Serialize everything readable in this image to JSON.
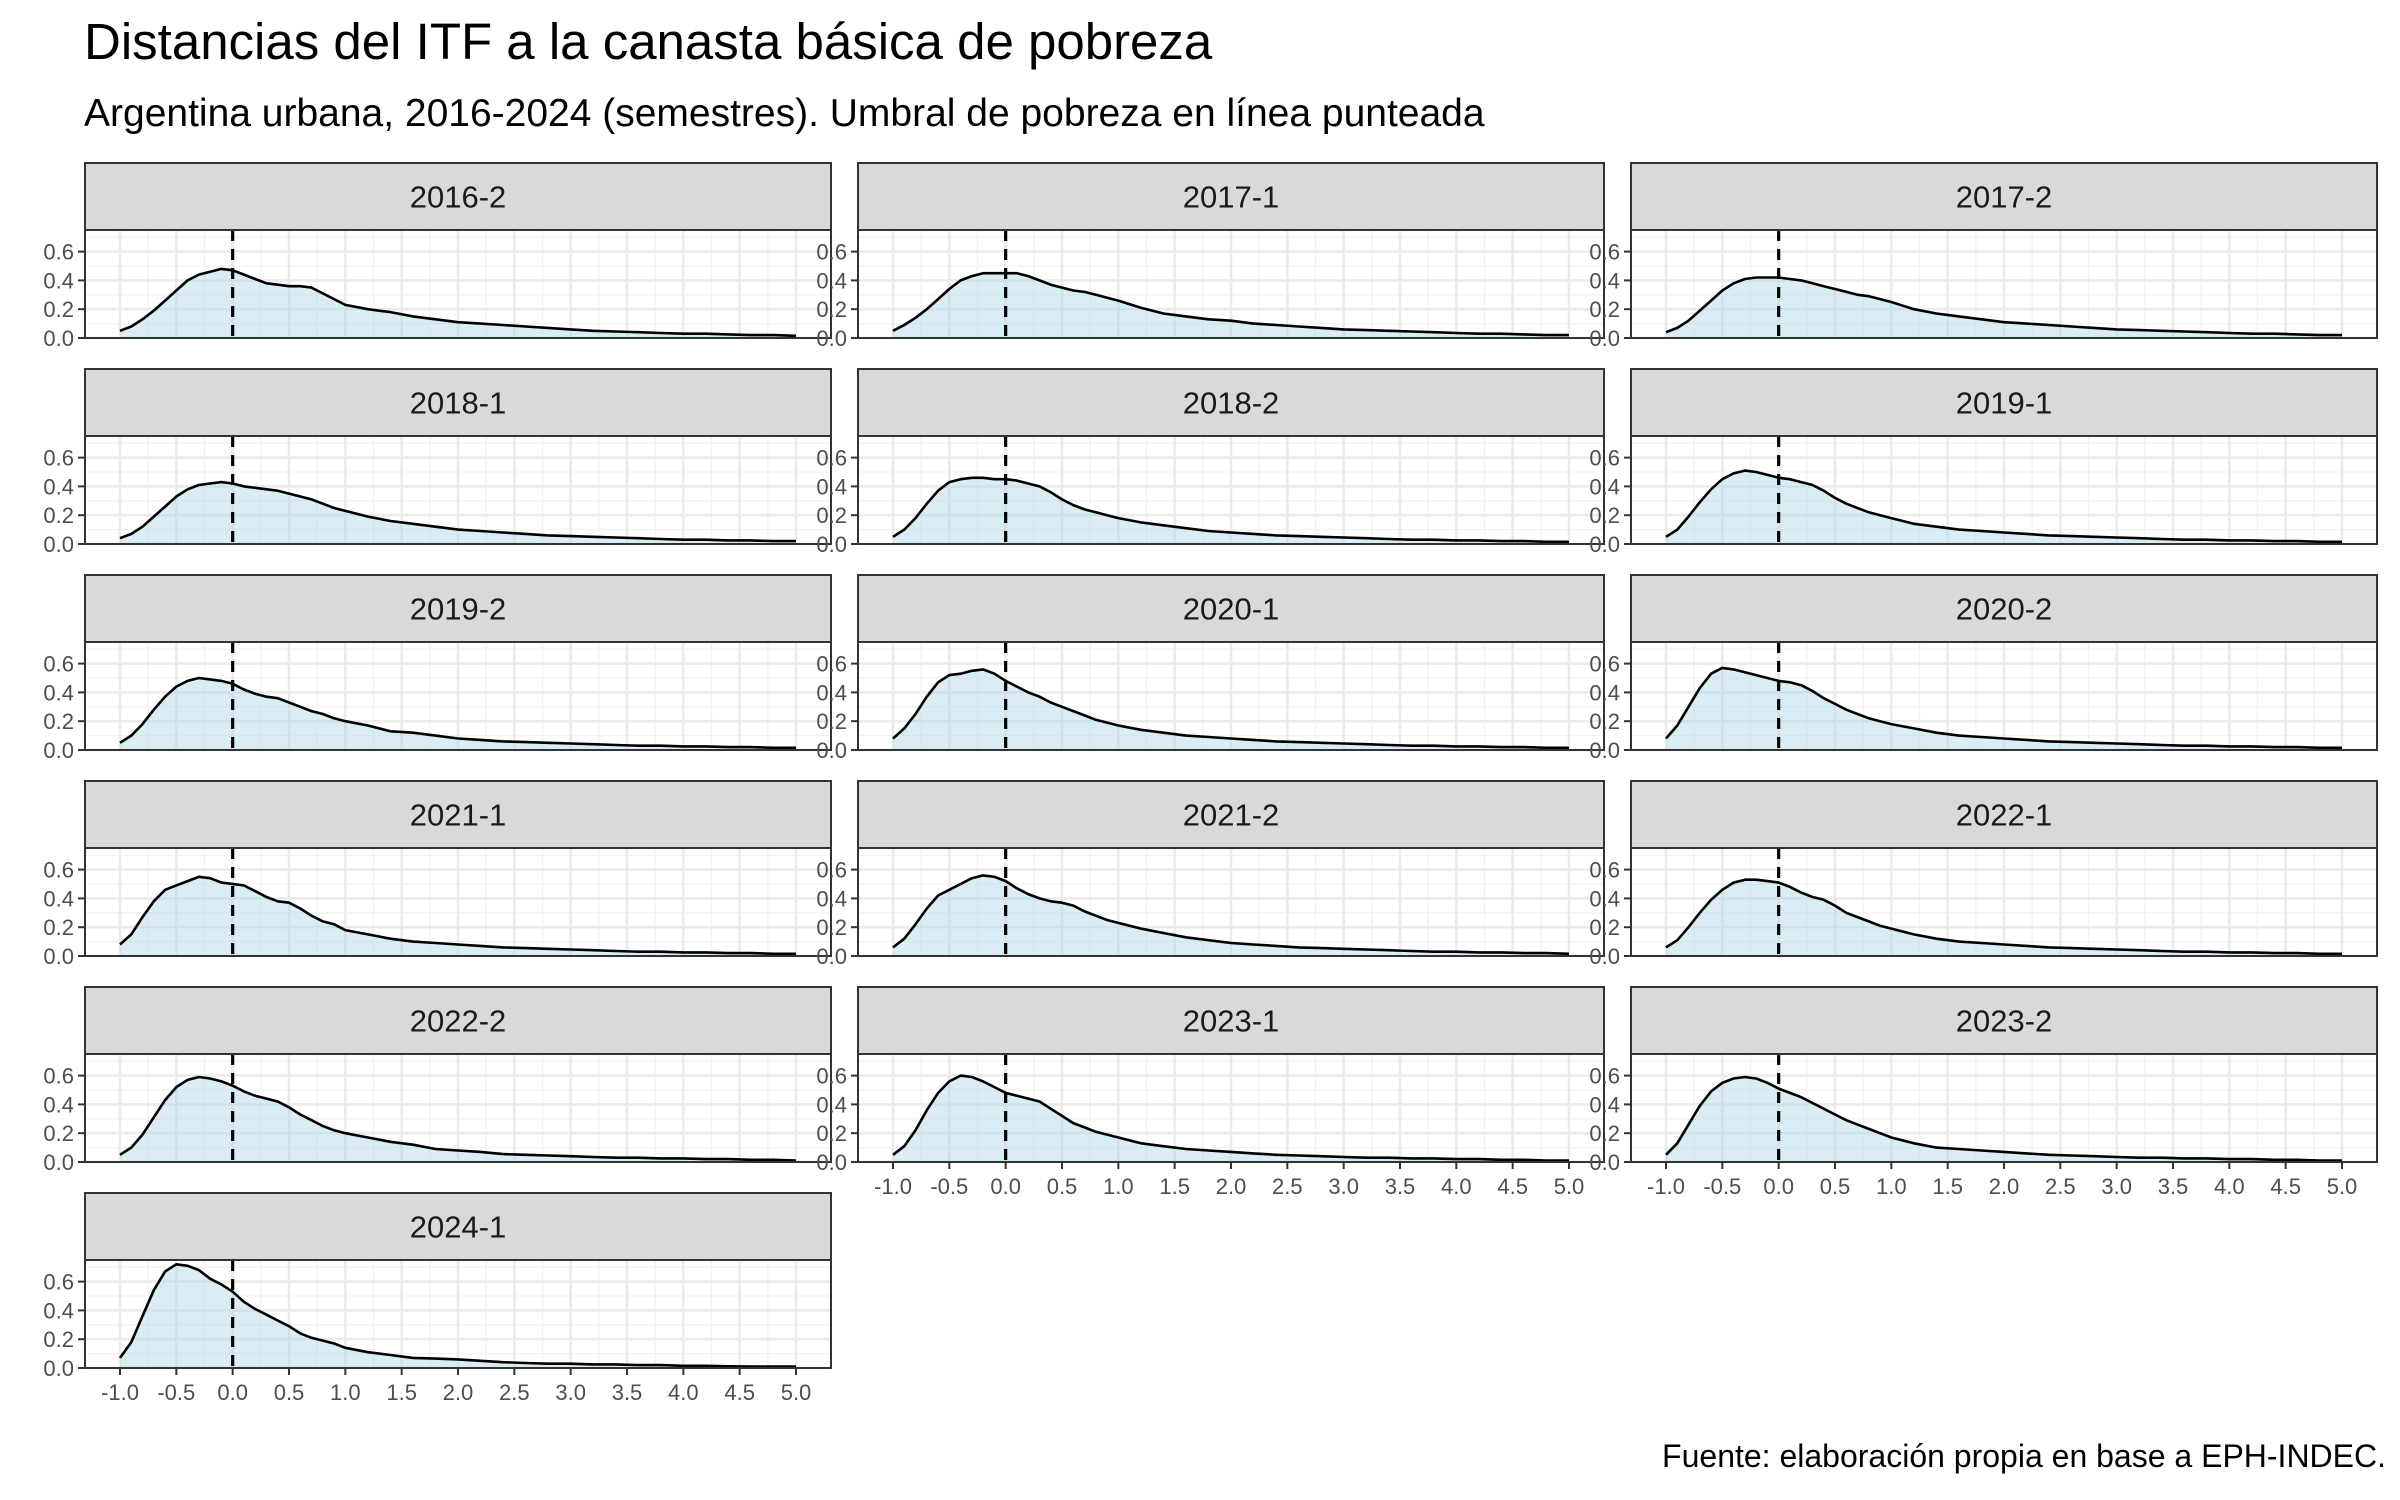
{
  "title": "Distancias del ITF a la canasta básica de pobreza",
  "subtitle": "Argentina urbana, 2016-2024 (semestres). Umbral de pobreza en línea punteada",
  "caption": "Fuente: elaboración propia en base a EPH-INDEC.",
  "chart_data": {
    "type": "area",
    "facet_layout": {
      "columns": 3,
      "rows": 6
    },
    "threshold": {
      "x": 0,
      "style": "dashed"
    },
    "xlim": [
      -1.0,
      5.0
    ],
    "ylim": [
      0,
      0.75
    ],
    "x_ticks": [
      "-1.0",
      "-0.5",
      "0.0",
      "0.5",
      "1.0",
      "1.5",
      "2.0",
      "2.5",
      "3.0",
      "3.5",
      "4.0",
      "4.5",
      "5.0"
    ],
    "y_ticks": [
      "0.0",
      "0.2",
      "0.4",
      "0.6"
    ],
    "x_values": [
      -1.0,
      -0.9,
      -0.8,
      -0.7,
      -0.6,
      -0.5,
      -0.4,
      -0.3,
      -0.2,
      -0.1,
      0.0,
      0.1,
      0.2,
      0.3,
      0.4,
      0.5,
      0.6,
      0.7,
      0.8,
      0.9,
      1.0,
      1.2,
      1.4,
      1.6,
      1.8,
      2.0,
      2.2,
      2.4,
      2.6,
      2.8,
      3.0,
      3.2,
      3.4,
      3.6,
      3.8,
      4.0,
      4.2,
      4.4,
      4.6,
      4.8,
      5.0
    ],
    "series": [
      {
        "name": "2016-2",
        "values": [
          0.05,
          0.08,
          0.13,
          0.19,
          0.26,
          0.33,
          0.4,
          0.44,
          0.46,
          0.48,
          0.47,
          0.44,
          0.41,
          0.38,
          0.37,
          0.36,
          0.36,
          0.35,
          0.31,
          0.27,
          0.23,
          0.2,
          0.18,
          0.15,
          0.13,
          0.11,
          0.1,
          0.09,
          0.08,
          0.07,
          0.06,
          0.05,
          0.045,
          0.04,
          0.035,
          0.03,
          0.03,
          0.025,
          0.02,
          0.02,
          0.015
        ]
      },
      {
        "name": "2017-1",
        "values": [
          0.05,
          0.09,
          0.14,
          0.2,
          0.27,
          0.34,
          0.4,
          0.43,
          0.45,
          0.45,
          0.45,
          0.45,
          0.43,
          0.4,
          0.37,
          0.35,
          0.33,
          0.32,
          0.3,
          0.28,
          0.26,
          0.21,
          0.17,
          0.15,
          0.13,
          0.12,
          0.1,
          0.09,
          0.08,
          0.07,
          0.06,
          0.055,
          0.05,
          0.045,
          0.04,
          0.035,
          0.03,
          0.03,
          0.025,
          0.02,
          0.02
        ]
      },
      {
        "name": "2017-2",
        "values": [
          0.04,
          0.07,
          0.12,
          0.19,
          0.26,
          0.33,
          0.38,
          0.41,
          0.42,
          0.42,
          0.42,
          0.41,
          0.4,
          0.38,
          0.36,
          0.34,
          0.32,
          0.3,
          0.29,
          0.27,
          0.25,
          0.2,
          0.17,
          0.15,
          0.13,
          0.11,
          0.1,
          0.09,
          0.08,
          0.07,
          0.06,
          0.055,
          0.05,
          0.045,
          0.04,
          0.035,
          0.03,
          0.03,
          0.025,
          0.02,
          0.02
        ]
      },
      {
        "name": "2018-1",
        "values": [
          0.04,
          0.07,
          0.12,
          0.19,
          0.26,
          0.33,
          0.38,
          0.41,
          0.42,
          0.43,
          0.42,
          0.4,
          0.39,
          0.38,
          0.37,
          0.35,
          0.33,
          0.31,
          0.28,
          0.25,
          0.23,
          0.19,
          0.16,
          0.14,
          0.12,
          0.1,
          0.09,
          0.08,
          0.07,
          0.06,
          0.055,
          0.05,
          0.045,
          0.04,
          0.035,
          0.03,
          0.03,
          0.025,
          0.025,
          0.02,
          0.02
        ]
      },
      {
        "name": "2018-2",
        "values": [
          0.05,
          0.1,
          0.18,
          0.28,
          0.37,
          0.43,
          0.45,
          0.46,
          0.46,
          0.45,
          0.45,
          0.44,
          0.42,
          0.4,
          0.36,
          0.31,
          0.27,
          0.24,
          0.22,
          0.2,
          0.18,
          0.15,
          0.13,
          0.11,
          0.09,
          0.08,
          0.07,
          0.06,
          0.055,
          0.05,
          0.045,
          0.04,
          0.035,
          0.03,
          0.03,
          0.025,
          0.025,
          0.02,
          0.02,
          0.015,
          0.015
        ]
      },
      {
        "name": "2019-1",
        "values": [
          0.05,
          0.1,
          0.19,
          0.29,
          0.38,
          0.45,
          0.49,
          0.51,
          0.5,
          0.48,
          0.46,
          0.45,
          0.43,
          0.41,
          0.37,
          0.32,
          0.28,
          0.25,
          0.22,
          0.2,
          0.18,
          0.14,
          0.12,
          0.1,
          0.09,
          0.08,
          0.07,
          0.06,
          0.055,
          0.05,
          0.045,
          0.04,
          0.035,
          0.03,
          0.03,
          0.025,
          0.025,
          0.02,
          0.02,
          0.015,
          0.015
        ]
      },
      {
        "name": "2019-2",
        "values": [
          0.05,
          0.1,
          0.18,
          0.28,
          0.37,
          0.44,
          0.48,
          0.5,
          0.49,
          0.48,
          0.46,
          0.42,
          0.39,
          0.37,
          0.36,
          0.33,
          0.3,
          0.27,
          0.25,
          0.22,
          0.2,
          0.17,
          0.13,
          0.12,
          0.1,
          0.08,
          0.07,
          0.06,
          0.055,
          0.05,
          0.045,
          0.04,
          0.035,
          0.03,
          0.03,
          0.025,
          0.025,
          0.02,
          0.02,
          0.015,
          0.015
        ]
      },
      {
        "name": "2020-1",
        "values": [
          0.08,
          0.15,
          0.25,
          0.37,
          0.47,
          0.52,
          0.53,
          0.55,
          0.56,
          0.53,
          0.48,
          0.44,
          0.4,
          0.37,
          0.33,
          0.3,
          0.27,
          0.24,
          0.21,
          0.19,
          0.17,
          0.14,
          0.12,
          0.1,
          0.09,
          0.08,
          0.07,
          0.06,
          0.055,
          0.05,
          0.045,
          0.04,
          0.035,
          0.03,
          0.03,
          0.025,
          0.025,
          0.02,
          0.02,
          0.015,
          0.015
        ]
      },
      {
        "name": "2020-2",
        "values": [
          0.08,
          0.17,
          0.3,
          0.43,
          0.53,
          0.57,
          0.56,
          0.54,
          0.52,
          0.5,
          0.48,
          0.47,
          0.45,
          0.41,
          0.36,
          0.32,
          0.28,
          0.25,
          0.22,
          0.2,
          0.18,
          0.15,
          0.12,
          0.1,
          0.09,
          0.08,
          0.07,
          0.06,
          0.055,
          0.05,
          0.045,
          0.04,
          0.035,
          0.03,
          0.03,
          0.025,
          0.025,
          0.02,
          0.02,
          0.015,
          0.015
        ]
      },
      {
        "name": "2021-1",
        "values": [
          0.08,
          0.15,
          0.27,
          0.38,
          0.46,
          0.49,
          0.52,
          0.55,
          0.54,
          0.51,
          0.5,
          0.49,
          0.45,
          0.41,
          0.38,
          0.37,
          0.33,
          0.28,
          0.24,
          0.22,
          0.18,
          0.15,
          0.12,
          0.1,
          0.09,
          0.08,
          0.07,
          0.06,
          0.055,
          0.05,
          0.045,
          0.04,
          0.035,
          0.03,
          0.03,
          0.025,
          0.025,
          0.02,
          0.02,
          0.015,
          0.015
        ]
      },
      {
        "name": "2021-2",
        "values": [
          0.06,
          0.12,
          0.22,
          0.33,
          0.42,
          0.46,
          0.5,
          0.54,
          0.56,
          0.55,
          0.52,
          0.47,
          0.43,
          0.4,
          0.38,
          0.37,
          0.35,
          0.31,
          0.28,
          0.25,
          0.23,
          0.19,
          0.16,
          0.13,
          0.11,
          0.09,
          0.08,
          0.07,
          0.06,
          0.055,
          0.05,
          0.045,
          0.04,
          0.035,
          0.03,
          0.03,
          0.025,
          0.025,
          0.02,
          0.02,
          0.015
        ]
      },
      {
        "name": "2022-1",
        "values": [
          0.06,
          0.11,
          0.2,
          0.3,
          0.39,
          0.46,
          0.51,
          0.53,
          0.53,
          0.52,
          0.51,
          0.48,
          0.44,
          0.41,
          0.39,
          0.35,
          0.3,
          0.27,
          0.24,
          0.21,
          0.19,
          0.15,
          0.12,
          0.1,
          0.09,
          0.08,
          0.07,
          0.06,
          0.055,
          0.05,
          0.045,
          0.04,
          0.035,
          0.03,
          0.03,
          0.025,
          0.025,
          0.02,
          0.02,
          0.015,
          0.015
        ]
      },
      {
        "name": "2022-2",
        "values": [
          0.05,
          0.1,
          0.19,
          0.31,
          0.43,
          0.52,
          0.57,
          0.59,
          0.58,
          0.56,
          0.53,
          0.49,
          0.46,
          0.44,
          0.42,
          0.38,
          0.33,
          0.29,
          0.25,
          0.22,
          0.2,
          0.17,
          0.14,
          0.12,
          0.09,
          0.08,
          0.07,
          0.055,
          0.05,
          0.045,
          0.04,
          0.035,
          0.03,
          0.03,
          0.025,
          0.025,
          0.02,
          0.02,
          0.015,
          0.015,
          0.01
        ]
      },
      {
        "name": "2023-1",
        "values": [
          0.05,
          0.11,
          0.22,
          0.36,
          0.48,
          0.56,
          0.6,
          0.59,
          0.56,
          0.52,
          0.48,
          0.46,
          0.44,
          0.42,
          0.37,
          0.32,
          0.27,
          0.24,
          0.21,
          0.19,
          0.17,
          0.13,
          0.11,
          0.09,
          0.08,
          0.07,
          0.06,
          0.05,
          0.045,
          0.04,
          0.035,
          0.03,
          0.03,
          0.025,
          0.025,
          0.02,
          0.02,
          0.015,
          0.015,
          0.01,
          0.01
        ]
      },
      {
        "name": "2023-2",
        "values": [
          0.05,
          0.13,
          0.26,
          0.39,
          0.49,
          0.55,
          0.58,
          0.59,
          0.58,
          0.55,
          0.51,
          0.48,
          0.45,
          0.41,
          0.37,
          0.33,
          0.29,
          0.26,
          0.23,
          0.2,
          0.17,
          0.13,
          0.1,
          0.09,
          0.08,
          0.07,
          0.06,
          0.05,
          0.045,
          0.04,
          0.035,
          0.03,
          0.03,
          0.025,
          0.025,
          0.02,
          0.02,
          0.015,
          0.015,
          0.01,
          0.01
        ]
      },
      {
        "name": "2024-1",
        "values": [
          0.07,
          0.18,
          0.36,
          0.54,
          0.67,
          0.72,
          0.71,
          0.68,
          0.62,
          0.58,
          0.53,
          0.46,
          0.41,
          0.37,
          0.33,
          0.29,
          0.24,
          0.21,
          0.19,
          0.17,
          0.14,
          0.11,
          0.09,
          0.07,
          0.065,
          0.06,
          0.05,
          0.04,
          0.035,
          0.03,
          0.03,
          0.025,
          0.025,
          0.02,
          0.02,
          0.015,
          0.015,
          0.012,
          0.01,
          0.01,
          0.01
        ]
      }
    ]
  }
}
